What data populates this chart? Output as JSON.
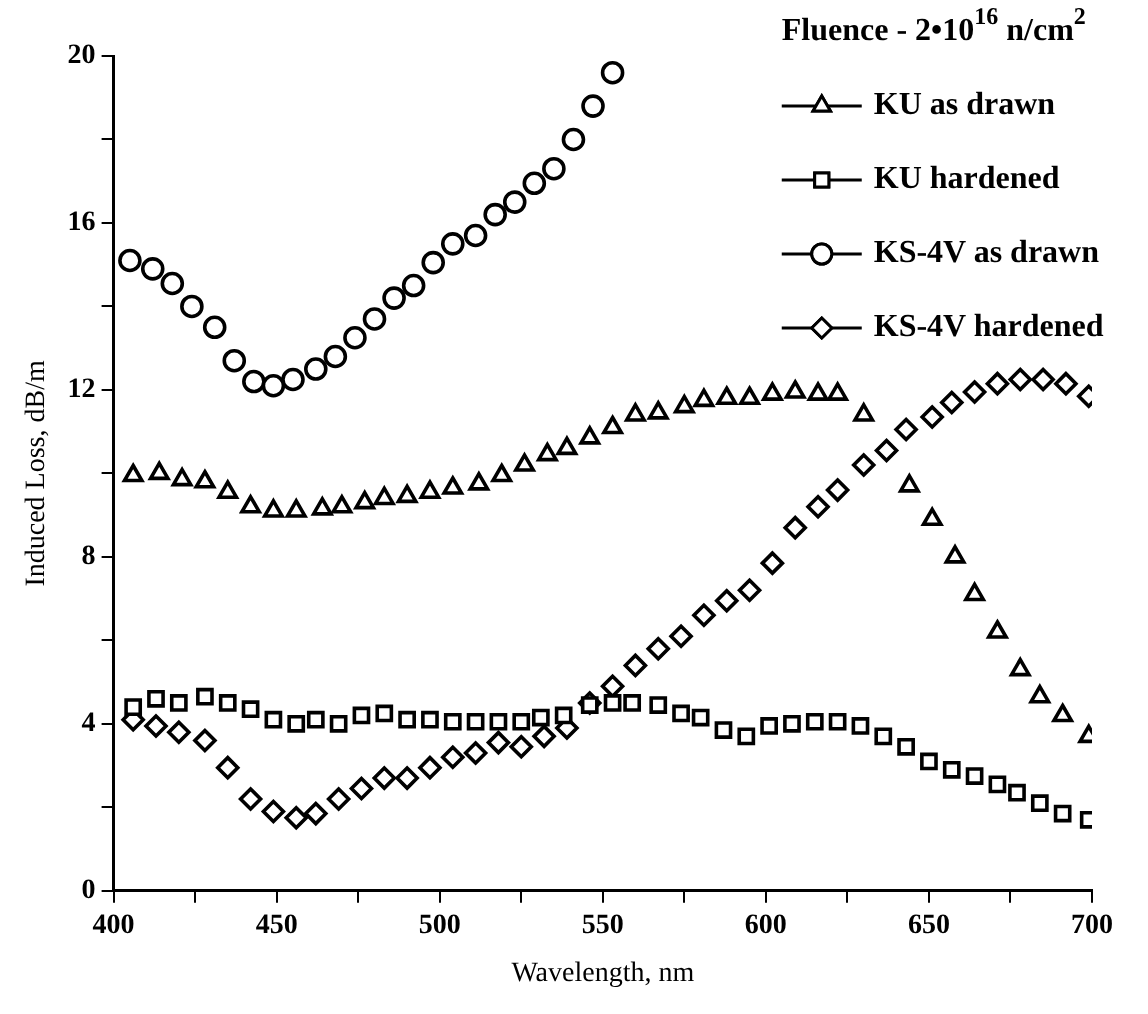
{
  "chart_data": {
    "type": "scatter",
    "legend_title": "Fluence - 2•10$^{16}$ n/cm$^{2}$",
    "xlabel": "Wavelength, nm",
    "ylabel": "Induced Loss, dB/m",
    "xlim": [
      400,
      700
    ],
    "ylim": [
      0,
      20
    ],
    "xticks": [
      400,
      {
        "value": 425,
        "label": null
      },
      450,
      {
        "value": 475,
        "label": null
      },
      500,
      {
        "value": 525,
        "label": null
      },
      550,
      {
        "value": 575,
        "label": null
      },
      600,
      {
        "value": 625,
        "label": null
      },
      650,
      {
        "value": 675,
        "label": null
      },
      700
    ],
    "yticks": [
      0,
      {
        "value": 2,
        "label": null
      },
      4,
      {
        "value": 6,
        "label": null
      },
      8,
      {
        "value": 10,
        "label": null
      },
      12,
      {
        "value": 14,
        "label": null
      },
      16,
      {
        "value": 18,
        "label": null
      },
      20
    ],
    "grid": false,
    "legend": "top right",
    "series": [
      {
        "name": "KU as drawn",
        "color": "#000000",
        "marker": "triangle",
        "x": [
          406,
          414,
          421,
          428,
          435,
          442,
          449,
          456,
          464,
          470,
          477,
          483,
          490,
          497,
          504,
          512,
          519,
          526,
          533,
          539,
          546,
          553,
          560,
          567,
          575,
          581,
          588,
          595,
          602,
          609,
          616,
          622,
          630,
          644,
          651,
          658,
          664,
          671,
          678,
          684,
          691,
          699
        ],
        "values": [
          9.95,
          10.0,
          9.85,
          9.8,
          9.55,
          9.2,
          9.1,
          9.1,
          9.15,
          9.2,
          9.3,
          9.4,
          9.45,
          9.55,
          9.65,
          9.75,
          9.95,
          10.2,
          10.45,
          10.6,
          10.85,
          11.1,
          11.4,
          11.45,
          11.6,
          11.75,
          11.8,
          11.8,
          11.9,
          11.95,
          11.9,
          11.9,
          11.4,
          9.7,
          8.9,
          8.0,
          7.1,
          6.2,
          5.3,
          4.65,
          4.2,
          3.7
        ]
      },
      {
        "name": "KU hardened",
        "color": "#000000",
        "marker": "square",
        "x": [
          406,
          413,
          420,
          428,
          435,
          442,
          449,
          456,
          462,
          469,
          476,
          483,
          490,
          497,
          504,
          511,
          518,
          525,
          531,
          538,
          546,
          553,
          559,
          567,
          574,
          580,
          587,
          594,
          601,
          608,
          615,
          622,
          629,
          636,
          643,
          650,
          657,
          664,
          671,
          677,
          684,
          691,
          699
        ],
        "values": [
          4.4,
          4.6,
          4.5,
          4.65,
          4.5,
          4.35,
          4.1,
          4.0,
          4.1,
          4.0,
          4.2,
          4.25,
          4.1,
          4.1,
          4.05,
          4.05,
          4.05,
          4.05,
          4.15,
          4.2,
          4.45,
          4.5,
          4.5,
          4.45,
          4.25,
          4.15,
          3.85,
          3.7,
          3.95,
          4.0,
          4.05,
          4.05,
          3.95,
          3.7,
          3.45,
          3.1,
          2.9,
          2.75,
          2.55,
          2.35,
          2.1,
          1.85,
          1.7
        ]
      },
      {
        "name": "KS-4V as drawn",
        "color": "#000000",
        "marker": "circle",
        "x": [
          405,
          412,
          418,
          424,
          431,
          437,
          443,
          449,
          455,
          462,
          468,
          474,
          480,
          486,
          492,
          498,
          504,
          511,
          517,
          523,
          529,
          535,
          541,
          547,
          553
        ],
        "values": [
          15.1,
          14.9,
          14.55,
          14.0,
          13.5,
          12.7,
          12.2,
          12.1,
          12.25,
          12.5,
          12.8,
          13.25,
          13.7,
          14.2,
          14.5,
          15.05,
          15.5,
          15.7,
          16.2,
          16.5,
          16.95,
          17.3,
          18.0,
          18.8,
          19.6
        ]
      },
      {
        "name": "KS-4V hardened",
        "color": "#000000",
        "marker": "diamond",
        "x": [
          406,
          413,
          420,
          428,
          435,
          442,
          449,
          456,
          462,
          469,
          476,
          483,
          490,
          497,
          504,
          511,
          518,
          525,
          532,
          539,
          546,
          553,
          560,
          567,
          574,
          581,
          588,
          595,
          602,
          609,
          616,
          622,
          630,
          637,
          643,
          651,
          657,
          664,
          671,
          678,
          685,
          692,
          699
        ],
        "values": [
          4.1,
          3.95,
          3.8,
          3.6,
          2.95,
          2.2,
          1.9,
          1.75,
          1.85,
          2.2,
          2.45,
          2.7,
          2.7,
          2.95,
          3.2,
          3.3,
          3.55,
          3.45,
          3.7,
          3.9,
          4.5,
          4.9,
          5.4,
          5.8,
          6.1,
          6.6,
          6.95,
          7.2,
          7.85,
          8.7,
          9.2,
          9.6,
          10.2,
          10.55,
          11.05,
          11.35,
          11.7,
          11.95,
          12.15,
          12.25,
          12.25,
          12.15,
          11.85
        ]
      }
    ]
  }
}
